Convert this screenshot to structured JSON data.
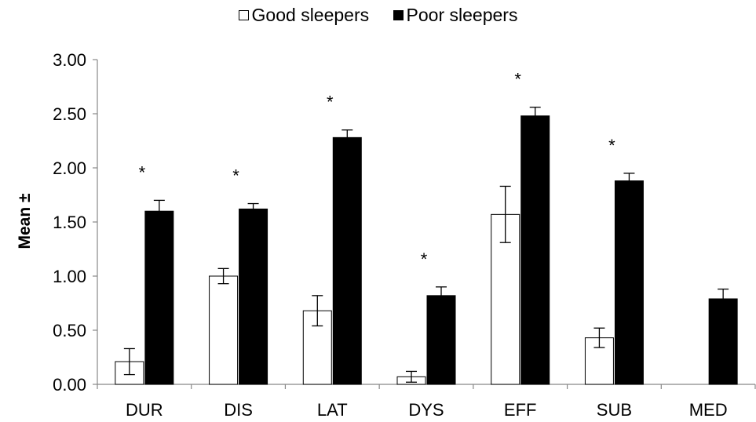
{
  "chart_data": {
    "type": "bar",
    "categories": [
      "DUR",
      "DIS",
      "LAT",
      "DYS",
      "EFF",
      "SUB",
      "MED"
    ],
    "series": [
      {
        "name": "Good sleepers",
        "values": [
          0.21,
          1.0,
          0.68,
          0.07,
          1.57,
          0.43,
          0.0
        ],
        "error": [
          0.12,
          0.07,
          0.14,
          0.05,
          0.26,
          0.09,
          0.0
        ],
        "color": "#ffffff"
      },
      {
        "name": "Poor sleepers",
        "values": [
          1.6,
          1.62,
          2.28,
          0.82,
          2.48,
          1.88,
          0.79
        ],
        "error": [
          0.1,
          0.05,
          0.07,
          0.08,
          0.08,
          0.07,
          0.09
        ],
        "color": "#000000"
      }
    ],
    "significance": [
      "*",
      "*",
      "*",
      "*",
      "*",
      "*",
      ""
    ],
    "ylabel": "Mean ±",
    "ylim": [
      0,
      3
    ],
    "yticks": [
      "0.00",
      "0.50",
      "1.00",
      "1.50",
      "2.00",
      "2.50",
      "3.00"
    ],
    "yticks_values": [
      0,
      0.5,
      1.0,
      1.5,
      2.0,
      2.5,
      3.0
    ],
    "legend_position": "top-center",
    "grid": false
  }
}
